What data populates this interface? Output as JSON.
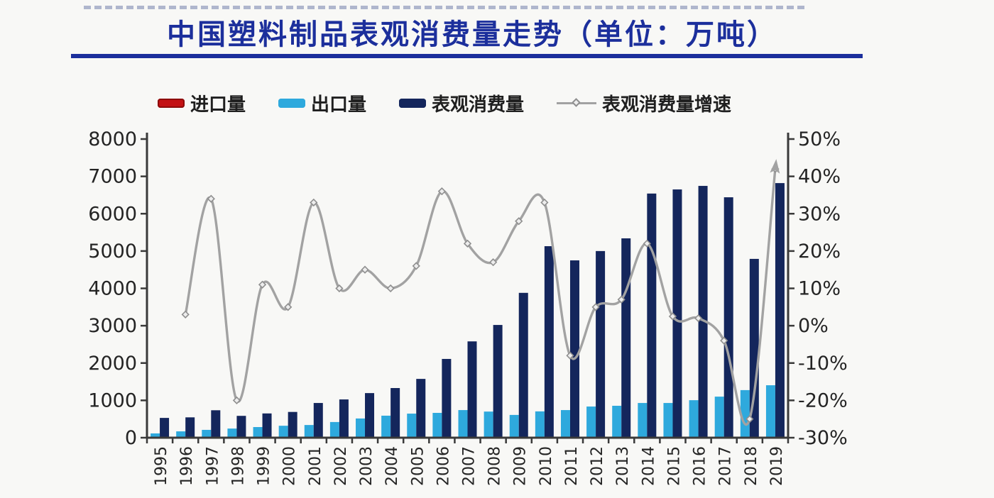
{
  "title": "中国塑料制品表观消费量走势（单位：万吨）",
  "palette": {
    "title_blue": "#1c2f9c",
    "axis_color": "#3a3a3a",
    "tick_text": "#242424",
    "background": "#f8f8f6"
  },
  "chart_data": {
    "type": "bar+line",
    "title": "中国塑料制品表观消费量走势（单位：万吨）",
    "unit": "万吨",
    "grid": false,
    "legend_position": "top",
    "categories": [
      "1995",
      "1996",
      "1997",
      "1998",
      "1999",
      "2000",
      "2001",
      "2002",
      "2003",
      "2004",
      "2005",
      "2006",
      "2007",
      "2008",
      "2009",
      "2010",
      "2011",
      "2012",
      "2013",
      "2014",
      "2015",
      "2016",
      "2017",
      "2018",
      "2019"
    ],
    "left_axis": {
      "min": 0,
      "max": 8000,
      "tick_step": 1000,
      "labels": [
        "0",
        "1000",
        "2000",
        "3000",
        "4000",
        "5000",
        "6000",
        "7000",
        "8000"
      ]
    },
    "right_axis": {
      "min": -30,
      "max": 50,
      "tick_step": 10,
      "labels": [
        "-30%",
        "-20%",
        "-10%",
        "0%",
        "10%",
        "20%",
        "30%",
        "40%",
        "50%"
      ]
    },
    "series": [
      {
        "key": "imports",
        "name": "进口量",
        "type": "bar",
        "axis": "left",
        "color": "#c31114",
        "edge": "#8d0b0b",
        "values": [
          0,
          0,
          0,
          0,
          0,
          0,
          0,
          0,
          0,
          0,
          0,
          0,
          0,
          0,
          0,
          0,
          0,
          0,
          0,
          0,
          0,
          0,
          0,
          0,
          0
        ]
      },
      {
        "key": "exports",
        "name": "出口量",
        "type": "bar",
        "axis": "left",
        "color": "#2ea9dd",
        "edge": "#2ea9dd",
        "values": [
          115,
          170,
          210,
          245,
          285,
          320,
          340,
          420,
          515,
          590,
          645,
          665,
          740,
          700,
          610,
          705,
          740,
          835,
          855,
          930,
          930,
          1005,
          1100,
          1275,
          1405
        ]
      },
      {
        "key": "apparent-consumption",
        "name": "表观消费量",
        "type": "bar",
        "axis": "left",
        "color": "#14265c",
        "edge": "#14265c",
        "values": [
          530,
          545,
          735,
          585,
          650,
          690,
          930,
          1025,
          1195,
          1330,
          1575,
          2110,
          2580,
          3020,
          3880,
          5130,
          4750,
          5000,
          5340,
          6540,
          6650,
          6745,
          6440,
          4790,
          6820
        ]
      },
      {
        "key": "growth-rate",
        "name": "表观消费量增速",
        "type": "line",
        "axis": "right",
        "color": "#a2a2a2",
        "values": [
          null,
          3,
          34,
          -20,
          11,
          5,
          33,
          10,
          15,
          10,
          16,
          36,
          22,
          17,
          28,
          33,
          -8,
          5,
          7,
          22,
          2.5,
          2,
          -4,
          -25,
          42
        ]
      }
    ]
  }
}
